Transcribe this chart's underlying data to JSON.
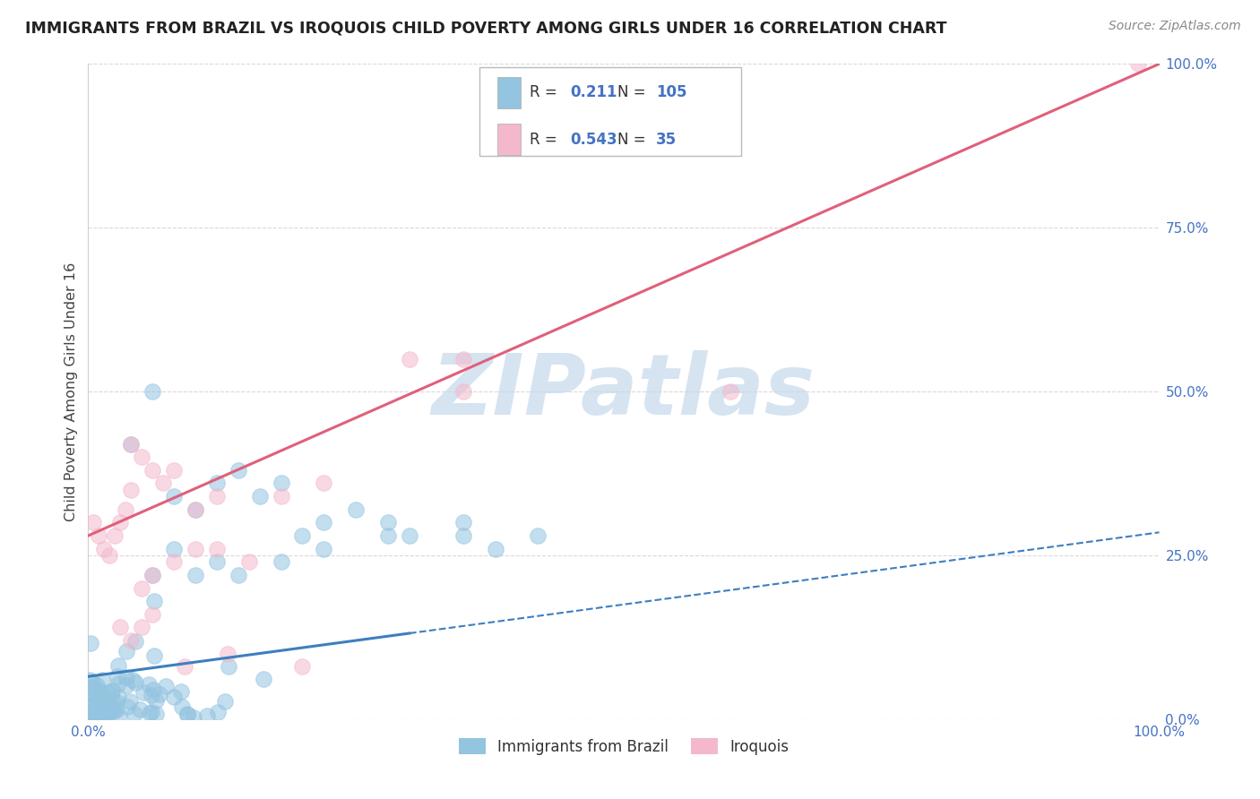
{
  "title": "IMMIGRANTS FROM BRAZIL VS IROQUOIS CHILD POVERTY AMONG GIRLS UNDER 16 CORRELATION CHART",
  "source": "Source: ZipAtlas.com",
  "ylabel": "Child Poverty Among Girls Under 16",
  "xlim": [
    0,
    1.0
  ],
  "ylim": [
    0,
    1.0
  ],
  "ytick_positions": [
    0.0,
    0.25,
    0.5,
    0.75,
    1.0
  ],
  "ytick_labels": [
    "0.0%",
    "25.0%",
    "50.0%",
    "75.0%",
    "100.0%"
  ],
  "xtick_positions": [
    0.0,
    1.0
  ],
  "xtick_labels": [
    "0.0%",
    "100.0%"
  ],
  "blue_R": "0.211",
  "blue_N": "105",
  "pink_R": "0.543",
  "pink_N": "35",
  "blue_scatter_color": "#93c4e0",
  "pink_scatter_color": "#f4b8cc",
  "blue_line_color": "#3d7fbf",
  "pink_line_color": "#e0607a",
  "legend_label_blue": "Immigrants from Brazil",
  "legend_label_pink": "Iroquois",
  "watermark_text": "ZIPatlas",
  "watermark_color": "#c5d8ea",
  "background_color": "#ffffff",
  "grid_color": "#d0d0d0",
  "title_color": "#222222",
  "source_color": "#888888",
  "tick_color": "#4472c4",
  "axis_label_color": "#444444",
  "blue_line_solid_end": 0.3,
  "blue_line_intercept": 0.065,
  "blue_line_slope": 0.22,
  "pink_line_intercept": 0.28,
  "pink_line_slope": 0.72
}
